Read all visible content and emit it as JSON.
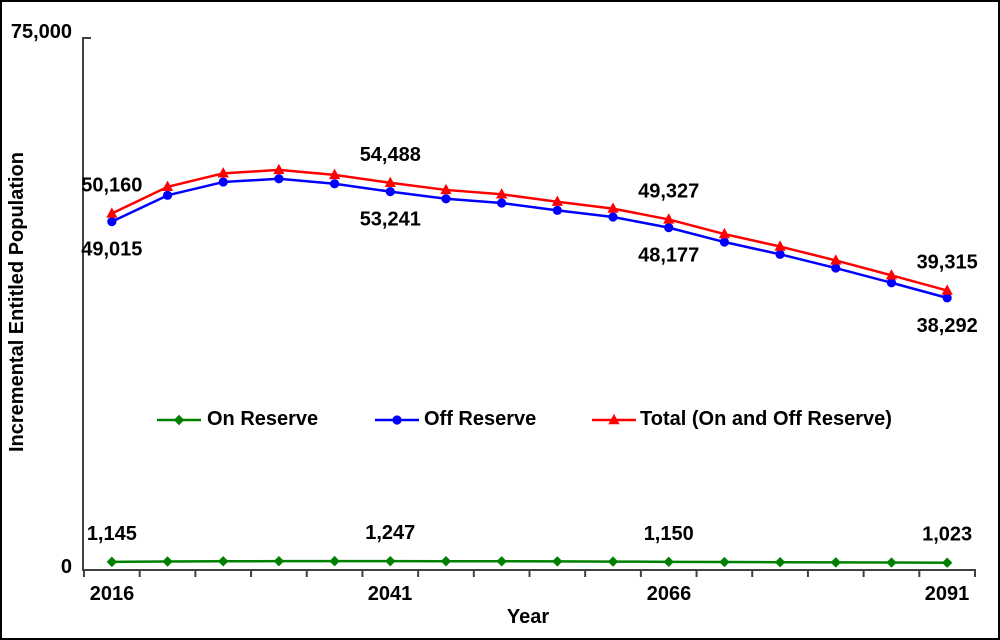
{
  "figure": {
    "background": "#FFFFFF",
    "border_color": "#000000",
    "axis_color": "#404040",
    "text_color": "#000000"
  },
  "chart_data": {
    "type": "line",
    "title": "",
    "xlabel": "Year",
    "ylabel": "Incremental Entitled Population",
    "x": [
      2016,
      2021,
      2026,
      2031,
      2036,
      2041,
      2046,
      2051,
      2056,
      2061,
      2066,
      2071,
      2076,
      2081,
      2086,
      2091
    ],
    "x_tick_labels": [
      "2016",
      "2041",
      "2066",
      "2091"
    ],
    "y_tick_labels": [
      "0",
      "75,000"
    ],
    "ylim": [
      0,
      75000
    ],
    "grid": false,
    "legend_position": "center-inside",
    "series": [
      {
        "name": "On Reserve",
        "color": "#008000",
        "marker": "diamond",
        "values": [
          1145,
          1195,
          1225,
          1245,
          1250,
          1247,
          1240,
          1228,
          1210,
          1185,
          1150,
          1122,
          1097,
          1072,
          1047,
          1023
        ]
      },
      {
        "name": "Off Reserve",
        "color": "#0000FF",
        "marker": "circle",
        "values": [
          49015,
          52720,
          54590,
          55050,
          54350,
          53241,
          52240,
          51640,
          50610,
          49670,
          48177,
          46150,
          44420,
          42490,
          40420,
          38292
        ]
      },
      {
        "name": "Total (On and Off Reserve)",
        "color": "#FF0000",
        "marker": "triangle",
        "values": [
          50160,
          53915,
          55815,
          56295,
          55600,
          54488,
          53480,
          52868,
          51820,
          50855,
          49327,
          47272,
          45517,
          43562,
          41467,
          39315
        ]
      }
    ],
    "annotations": [
      {
        "series": "Total (On and Off Reserve)",
        "year": 2016,
        "text": "50,160",
        "placement": "above"
      },
      {
        "series": "Off Reserve",
        "year": 2016,
        "text": "49,015",
        "placement": "below"
      },
      {
        "series": "Total (On and Off Reserve)",
        "year": 2041,
        "text": "54,488",
        "placement": "above"
      },
      {
        "series": "Off Reserve",
        "year": 2041,
        "text": "53,241",
        "placement": "below"
      },
      {
        "series": "Total (On and Off Reserve)",
        "year": 2066,
        "text": "49,327",
        "placement": "above"
      },
      {
        "series": "Off Reserve",
        "year": 2066,
        "text": "48,177",
        "placement": "below"
      },
      {
        "series": "Total (On and Off Reserve)",
        "year": 2091,
        "text": "39,315",
        "placement": "above"
      },
      {
        "series": "Off Reserve",
        "year": 2091,
        "text": "38,292",
        "placement": "below"
      },
      {
        "series": "On Reserve",
        "year": 2016,
        "text": "1,145",
        "placement": "above"
      },
      {
        "series": "On Reserve",
        "year": 2041,
        "text": "1,247",
        "placement": "above"
      },
      {
        "series": "On Reserve",
        "year": 2066,
        "text": "1,150",
        "placement": "above"
      },
      {
        "series": "On Reserve",
        "year": 2091,
        "text": "1,023",
        "placement": "above"
      }
    ]
  }
}
